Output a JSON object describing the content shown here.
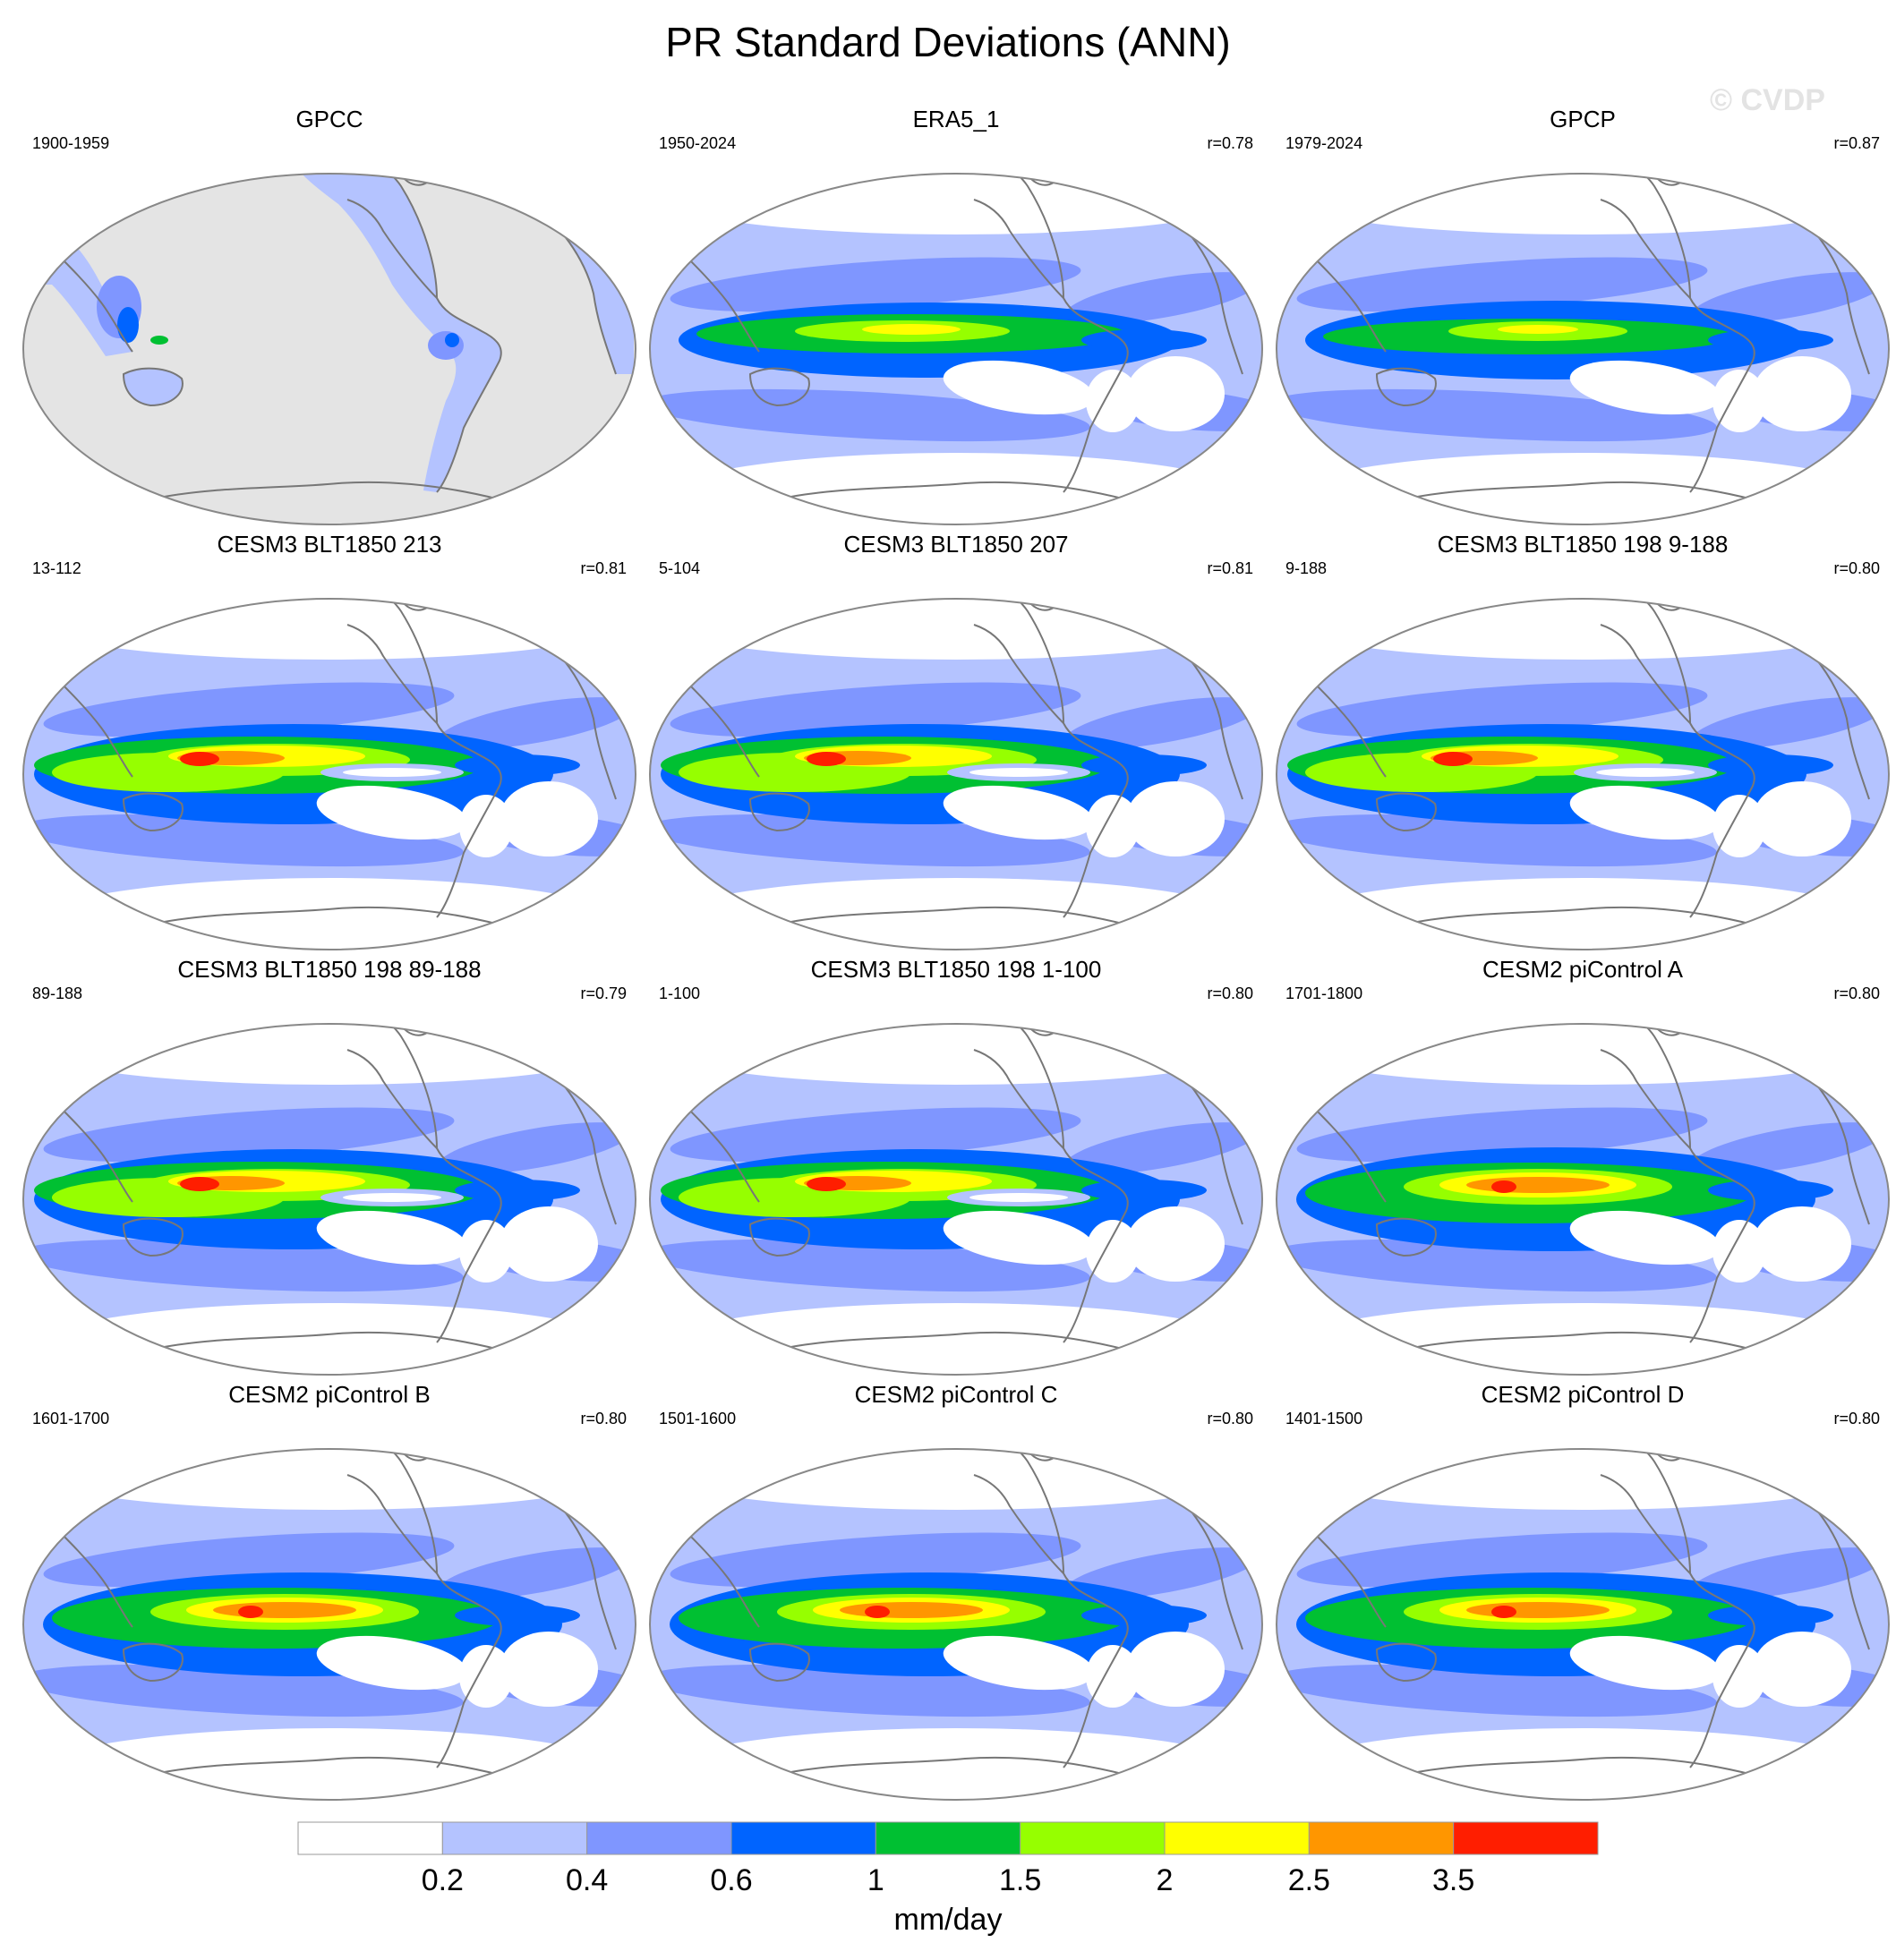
{
  "title": "PR Standard Deviations (ANN)",
  "watermark": "© CVDP",
  "colors": {
    "levels": [
      "#ffffff",
      "#b4c3ff",
      "#7f96ff",
      "#0064ff",
      "#00c032",
      "#96ff00",
      "#ffff00",
      "#ff9600",
      "#ff1e00"
    ],
    "land_mask": "#e4e4e4",
    "coast": "#777777",
    "frame": "#888888"
  },
  "panels": [
    {
      "title": "GPCC",
      "period": "1900-1959",
      "corr": "",
      "style": "gpcc"
    },
    {
      "title": "ERA5_1",
      "period": "1950-2024",
      "corr": "r=0.78",
      "style": "era5"
    },
    {
      "title": "GPCP",
      "period": "1979-2024",
      "corr": "r=0.87",
      "style": "gpcp"
    },
    {
      "title": "CESM3 BLT1850 213",
      "period": "13-112",
      "corr": "r=0.81",
      "style": "cesm3"
    },
    {
      "title": "CESM3 BLT1850 207",
      "period": "5-104",
      "corr": "r=0.81",
      "style": "cesm3"
    },
    {
      "title": "CESM3 BLT1850 198 9-188",
      "period": "9-188",
      "corr": "r=0.80",
      "style": "cesm3"
    },
    {
      "title": "CESM3 BLT1850 198 89-188",
      "period": "89-188",
      "corr": "r=0.79",
      "style": "cesm3"
    },
    {
      "title": "CESM3 BLT1850 198 1-100",
      "period": "1-100",
      "corr": "r=0.80",
      "style": "cesm3"
    },
    {
      "title": "CESM2 piControl A",
      "period": "1701-1800",
      "corr": "r=0.80",
      "style": "cesm2"
    },
    {
      "title": "CESM2 piControl B",
      "period": "1601-1700",
      "corr": "r=0.80",
      "style": "cesm2"
    },
    {
      "title": "CESM2 piControl C",
      "period": "1501-1600",
      "corr": "r=0.80",
      "style": "cesm2"
    },
    {
      "title": "CESM2 piControl D",
      "period": "1401-1500",
      "corr": "r=0.80",
      "style": "cesm2"
    }
  ],
  "colorbar": {
    "labels": [
      "0.2",
      "0.4",
      "0.6",
      "1",
      "1.5",
      "2",
      "2.5",
      "3.5"
    ],
    "units": "mm/day"
  }
}
